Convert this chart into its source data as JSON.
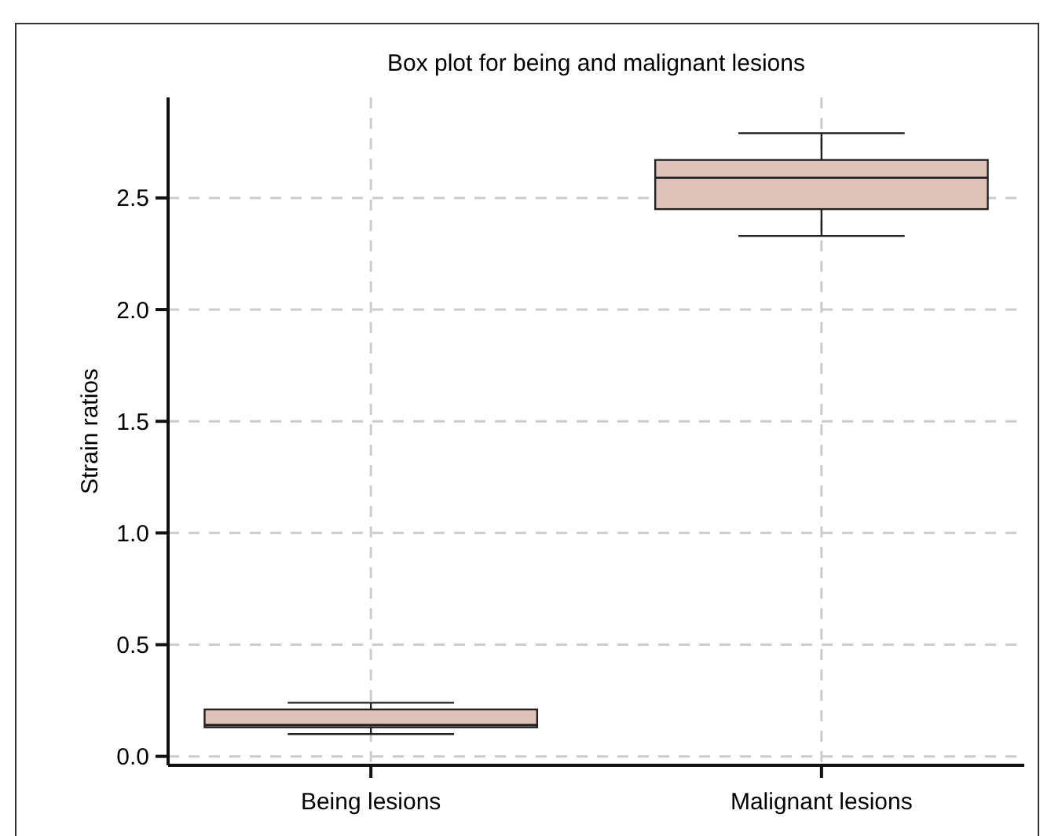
{
  "chart_data": {
    "type": "box",
    "title": "Box plot for being and malignant lesions",
    "ylabel": "Strain ratios",
    "categories": [
      "Being lesions",
      "Malignant lesions"
    ],
    "boxes": [
      {
        "low": 0.1,
        "q1": 0.13,
        "median": 0.14,
        "q3": 0.21,
        "high": 0.24
      },
      {
        "low": 2.33,
        "q1": 2.45,
        "median": 2.59,
        "q3": 2.67,
        "high": 2.79
      }
    ],
    "color": "#dfc3bb",
    "ylim": [
      -0.04,
      2.95
    ],
    "yticks": [
      {
        "value": 0,
        "label": "0.0"
      },
      {
        "value": 0.5,
        "label": "0.5"
      },
      {
        "value": 1,
        "label": "1.0"
      },
      {
        "value": 1.5,
        "label": "1.5"
      },
      {
        "value": 2,
        "label": "2.0"
      },
      {
        "value": 2.5,
        "label": "2.5"
      }
    ],
    "grid": true
  }
}
